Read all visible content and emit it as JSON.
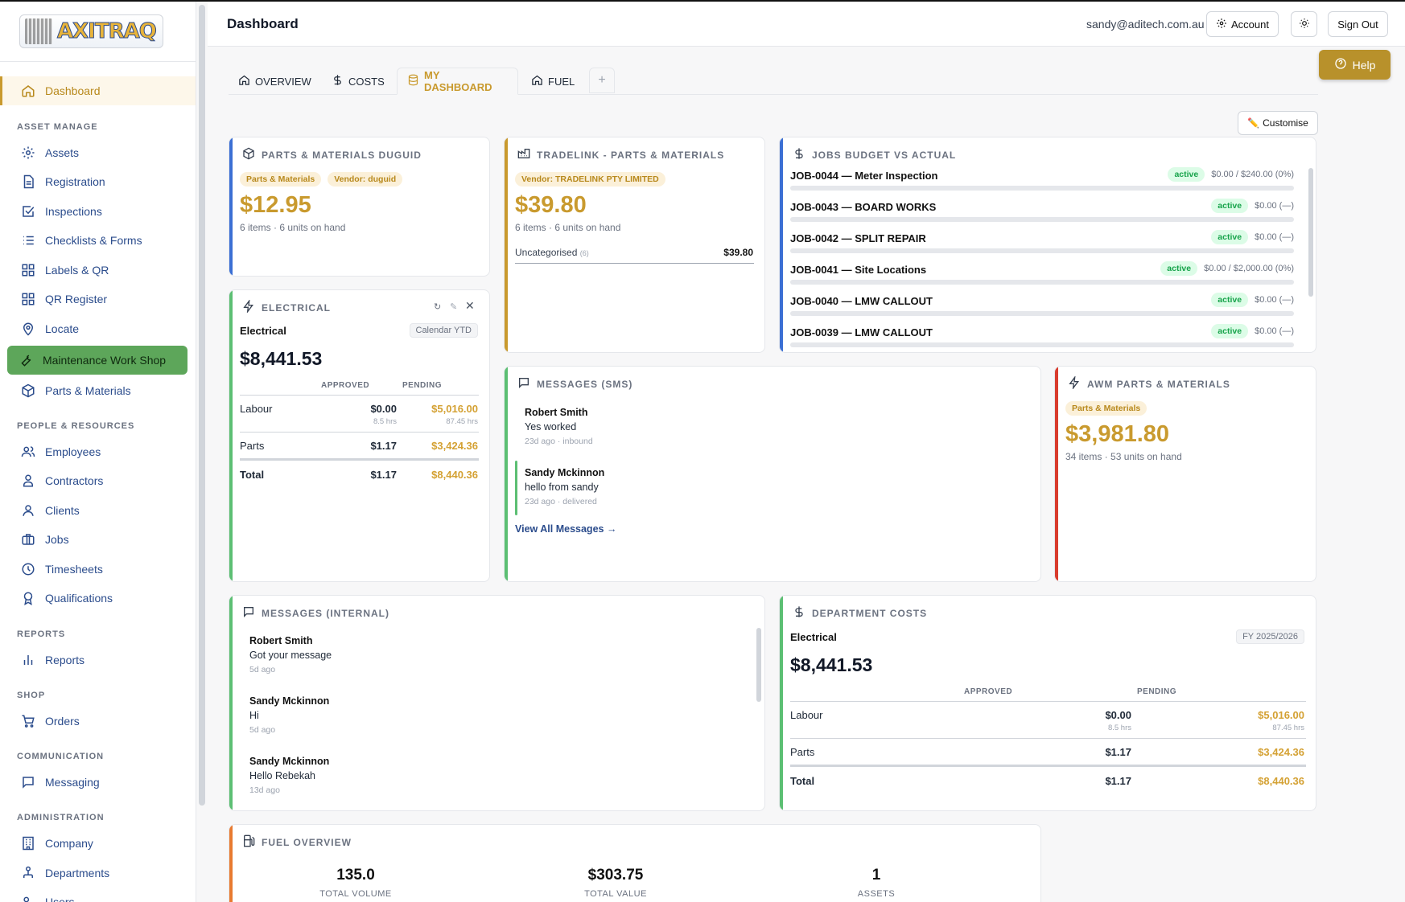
{
  "app": {
    "logo_text": "AXITRAQ",
    "page_title": "Dashboard"
  },
  "topbar": {
    "email": "sandy@aditech.com.au",
    "account": "Account",
    "sign_out": "Sign Out",
    "help": "Help"
  },
  "sidebar": {
    "dashboard": "Dashboard",
    "sections": {
      "asset": "ASSET MANAGE",
      "people": "PEOPLE & RESOURCES",
      "reports": "REPORTS",
      "shop": "SHOP",
      "communication": "COMMUNICATION",
      "administration": "ADMINISTRATION"
    },
    "items": {
      "assets": "Assets",
      "registration": "Registration",
      "inspections": "Inspections",
      "checklists": "Checklists & Forms",
      "labels": "Labels & QR",
      "qr_register": "QR Register",
      "locate": "Locate",
      "maintenance": "Maintenance Work Shop",
      "parts": "Parts & Materials",
      "employees": "Employees",
      "contractors": "Contractors",
      "clients": "Clients",
      "jobs": "Jobs",
      "timesheets": "Timesheets",
      "qualifications": "Qualifications",
      "reports": "Reports",
      "orders": "Orders",
      "messaging": "Messaging",
      "company": "Company",
      "departments": "Departments",
      "users": "Users"
    }
  },
  "tabs": {
    "overview": "OVERVIEW",
    "costs": "COSTS",
    "my_dashboard": "MY DASHBOARD",
    "fuel": "FUEL",
    "add": "+"
  },
  "customise": "Customise",
  "widgets": {
    "duguid": {
      "title": "PARTS & MATERIALS DUGUID",
      "tag1": "Parts & Materials",
      "tag2": "Vendor: duguid",
      "value": "$12.95",
      "sub": "6 items · 6 units on hand"
    },
    "tradelink": {
      "title": "TRADELINK - PARTS & MATERIALS",
      "tag": "Vendor: TRADELINK PTY LIMITED",
      "value": "$39.80",
      "sub": "6 items · 6 units on hand",
      "row_label": "Uncategorised",
      "row_count": "(6)",
      "row_value": "$39.80"
    },
    "jobs": {
      "title": "JOBS BUDGET VS ACTUAL",
      "rows": [
        {
          "name": "JOB-0044 — Meter Inspection",
          "status": "active",
          "amount": "$0.00 / $240.00 (0%)"
        },
        {
          "name": "JOB-0043 — BOARD WORKS",
          "status": "active",
          "amount": "$0.00 (—)"
        },
        {
          "name": "JOB-0042 — SPLIT REPAIR",
          "status": "active",
          "amount": "$0.00 (—)"
        },
        {
          "name": "JOB-0041 — Site Locations",
          "status": "active",
          "amount": "$0.00 / $2,000.00 (0%)"
        },
        {
          "name": "JOB-0040 — LMW CALLOUT",
          "status": "active",
          "amount": "$0.00 (—)"
        },
        {
          "name": "JOB-0039 — LMW CALLOUT",
          "status": "active",
          "amount": "$0.00 (—)"
        }
      ]
    },
    "electrical": {
      "title": "ELECTRICAL",
      "dept": "Electrical",
      "period": "Calendar YTD",
      "total": "$8,441.53",
      "col_approved": "APPROVED",
      "col_pending": "PENDING",
      "labour": "Labour",
      "labour_approved": "$0.00",
      "labour_approved_hrs": "8.5 hrs",
      "labour_pending": "$5,016.00",
      "labour_pending_hrs": "87.45 hrs",
      "parts": "Parts",
      "parts_approved": "$1.17",
      "parts_pending": "$3,424.36",
      "total_label": "Total",
      "total_approved": "$1.17",
      "total_pending": "$8,440.36"
    },
    "sms": {
      "title": "MESSAGES (SMS)",
      "messages": [
        {
          "name": "Robert Smith",
          "body": "Yes worked",
          "meta": "23d ago · inbound"
        },
        {
          "name": "Sandy Mckinnon",
          "body": "hello from sandy",
          "meta": "23d ago · delivered"
        }
      ],
      "view_all": "View All Messages →"
    },
    "awm": {
      "title": "AWM PARTS & MATERIALS",
      "tag": "Parts & Materials",
      "value": "$3,981.80",
      "sub": "34 items · 53 units on hand"
    },
    "internal": {
      "title": "MESSAGES (INTERNAL)",
      "messages": [
        {
          "name": "Robert Smith",
          "body": "Got your message",
          "meta": "5d ago"
        },
        {
          "name": "Sandy Mckinnon",
          "body": "Hi",
          "meta": "5d ago"
        },
        {
          "name": "Sandy Mckinnon",
          "body": "Hello Rebekah",
          "meta": "13d ago"
        }
      ]
    },
    "dept_costs": {
      "title": "DEPARTMENT COSTS",
      "dept": "Electrical",
      "period": "FY 2025/2026",
      "total": "$8,441.53",
      "col_approved": "APPROVED",
      "col_pending": "PENDING",
      "labour": "Labour",
      "labour_approved": "$0.00",
      "labour_approved_hrs": "8.5 hrs",
      "labour_pending": "$5,016.00",
      "labour_pending_hrs": "87.45 hrs",
      "parts": "Parts",
      "parts_approved": "$1.17",
      "parts_pending": "$3,424.36",
      "total_label": "Total",
      "total_approved": "$1.17",
      "total_pending": "$8,440.36"
    },
    "fuel": {
      "title": "FUEL OVERVIEW",
      "stats": [
        {
          "value": "135.0",
          "label": "TOTAL VOLUME"
        },
        {
          "value": "$303.75",
          "label": "TOTAL VALUE"
        },
        {
          "value": "1",
          "label": "ASSETS"
        }
      ]
    }
  },
  "colors": {
    "gold": "#c99a2e",
    "blue": "#3b6fd4",
    "green": "#5cbf73",
    "red": "#d93c2e",
    "orange": "#e87a2f",
    "nav": "#2b4c8c"
  }
}
